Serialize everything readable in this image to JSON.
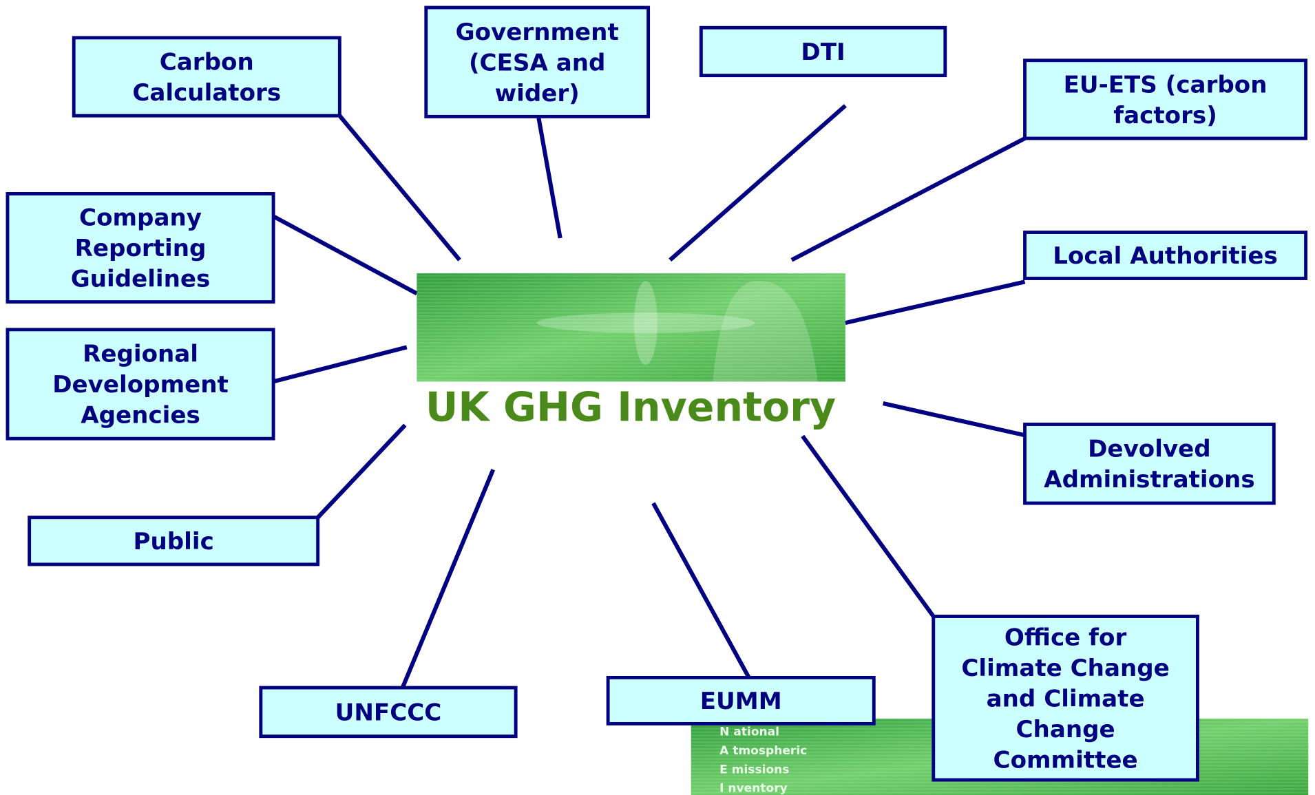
{
  "center": {
    "title": "UK GHG Inventory"
  },
  "nodes": [
    {
      "lines": [
        "Carbon",
        "Calculators"
      ]
    },
    {
      "lines": [
        "Government",
        "(CESA and",
        "wider)"
      ]
    },
    {
      "lines": [
        "DTI"
      ]
    },
    {
      "lines": [
        "EU-ETS (carbon",
        "factors)"
      ]
    },
    {
      "lines": [
        "Company",
        "Reporting",
        "Guidelines"
      ]
    },
    {
      "lines": [
        "Local Authorities"
      ]
    },
    {
      "lines": [
        "Regional",
        "Development",
        "Agencies"
      ]
    },
    {
      "lines": [
        "Devolved",
        "Administrations"
      ]
    },
    {
      "lines": [
        "Public"
      ]
    },
    {
      "lines": [
        "UNFCCC"
      ]
    },
    {
      "lines": [
        "EUMM"
      ]
    },
    {
      "lines": [
        "Office for",
        "Climate Change",
        "and Climate",
        "Change",
        "Committee"
      ]
    }
  ],
  "banner": {
    "lines": [
      "N ational",
      "A tmospheric",
      "E missions",
      "I nventory"
    ]
  }
}
